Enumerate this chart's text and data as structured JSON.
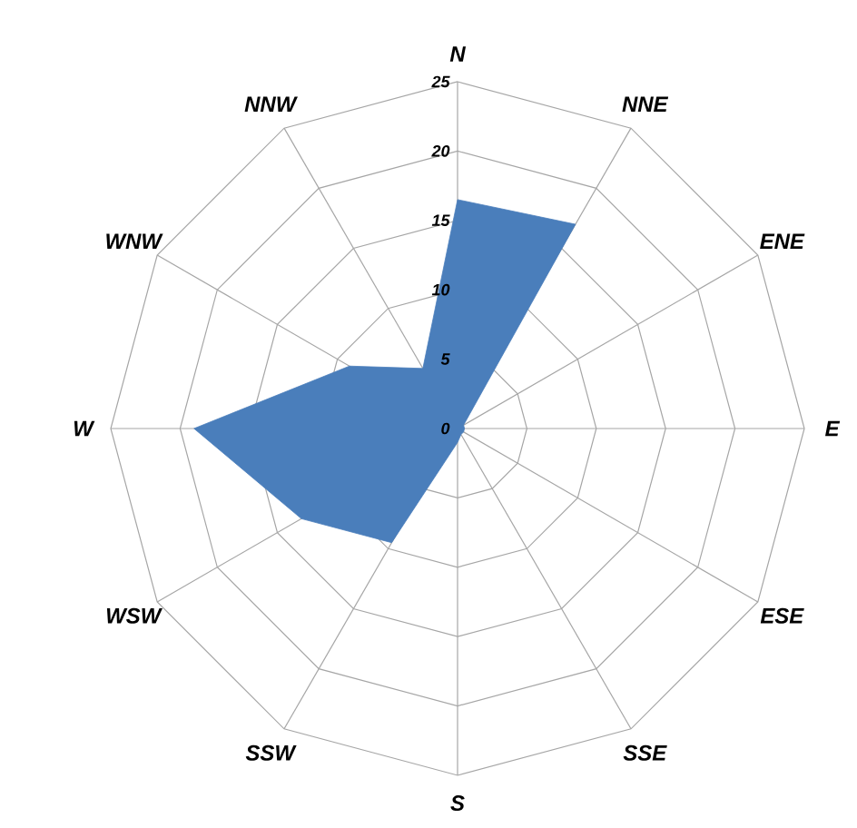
{
  "chart_data": {
    "type": "radar",
    "categories": [
      "N",
      "NNE",
      "ENE",
      "E",
      "ESE",
      "SSE",
      "S",
      "SSW",
      "WSW",
      "W",
      "WNW",
      "NNW"
    ],
    "series": [
      {
        "color": "#4a7ebb",
        "values": [
          16.5,
          17,
          0.5,
          0.5,
          0.5,
          0.5,
          1,
          9.5,
          13,
          19,
          9,
          5
        ]
      }
    ],
    "ylim": [
      0,
      25
    ],
    "yticks": [
      0,
      5,
      10,
      15,
      20,
      25
    ],
    "grid": true
  }
}
